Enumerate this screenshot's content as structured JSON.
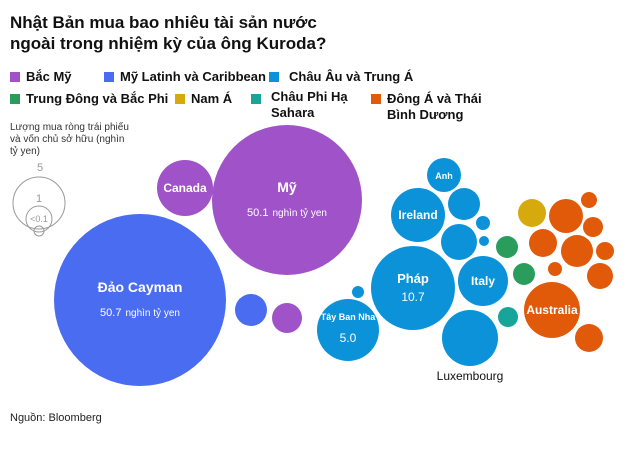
{
  "chart_data": {
    "type": "bubble",
    "title": "Nhật Bản mua bao nhiêu tài sản nước ngoài trong nhiệm kỳ của ông Kuroda?",
    "size_label": "Lượng mua ròng trái phiếu và vốn chủ sở hữu (nghìn tỷ yen)",
    "size_legend": [
      "5",
      "1",
      "<0.1"
    ],
    "unit": "nghìn tỷ yen",
    "source": "Nguồn: Bloomberg",
    "regions": [
      {
        "id": "na",
        "name": "Bắc Mỹ",
        "color": "#a052c8"
      },
      {
        "id": "la",
        "name": "Mỹ Latinh và Caribbean",
        "color": "#4a6cf0"
      },
      {
        "id": "eu",
        "name": "Châu Âu và Trung Á",
        "color": "#0b92d8"
      },
      {
        "id": "me",
        "name": "Trung Đông và Bắc Phi",
        "color": "#2a9d5c"
      },
      {
        "id": "sa",
        "name": "Nam Á",
        "color": "#d6a90c"
      },
      {
        "id": "af",
        "name": "Châu Phi Hạ Sahara",
        "color": "#17a59a"
      },
      {
        "id": "ea",
        "name": "Đông Á và Thái Bình Dương",
        "color": "#e05a0a"
      }
    ],
    "bubbles": [
      {
        "label": "Mỹ",
        "value": 50.1,
        "value_text": "50.1",
        "region": "na"
      },
      {
        "label": "Canada",
        "region": "na"
      },
      {
        "label": "",
        "region": "na"
      },
      {
        "label": "Đảo Cayman",
        "value": 50.7,
        "value_text": "50.7",
        "region": "la"
      },
      {
        "label": "",
        "region": "la"
      },
      {
        "label": "Anh",
        "region": "eu"
      },
      {
        "label": "",
        "region": "eu"
      },
      {
        "label": "Ireland",
        "region": "eu"
      },
      {
        "label": "",
        "region": "eu"
      },
      {
        "label": "",
        "region": "eu"
      },
      {
        "label": "",
        "region": "eu"
      },
      {
        "label": "Pháp",
        "value": 10.7,
        "value_text": "10.7",
        "region": "eu"
      },
      {
        "label": "Italy",
        "region": "eu"
      },
      {
        "label": "",
        "region": "eu"
      },
      {
        "label": "Tây Ban Nha",
        "value": 5.0,
        "value_text": "5.0",
        "region": "eu"
      },
      {
        "label": "Luxembourg",
        "region": "eu"
      },
      {
        "label": "",
        "region": "me"
      },
      {
        "label": "",
        "region": "me"
      },
      {
        "label": "",
        "region": "af"
      },
      {
        "label": "",
        "region": "sa"
      },
      {
        "label": "",
        "region": "ea"
      },
      {
        "label": "",
        "region": "ea"
      },
      {
        "label": "",
        "region": "ea"
      },
      {
        "label": "",
        "region": "ea"
      },
      {
        "label": "",
        "region": "ea"
      },
      {
        "label": "",
        "region": "ea"
      },
      {
        "label": "",
        "region": "ea"
      },
      {
        "label": "",
        "region": "ea"
      },
      {
        "label": "Australia",
        "region": "ea"
      },
      {
        "label": "",
        "region": "ea"
      }
    ]
  }
}
